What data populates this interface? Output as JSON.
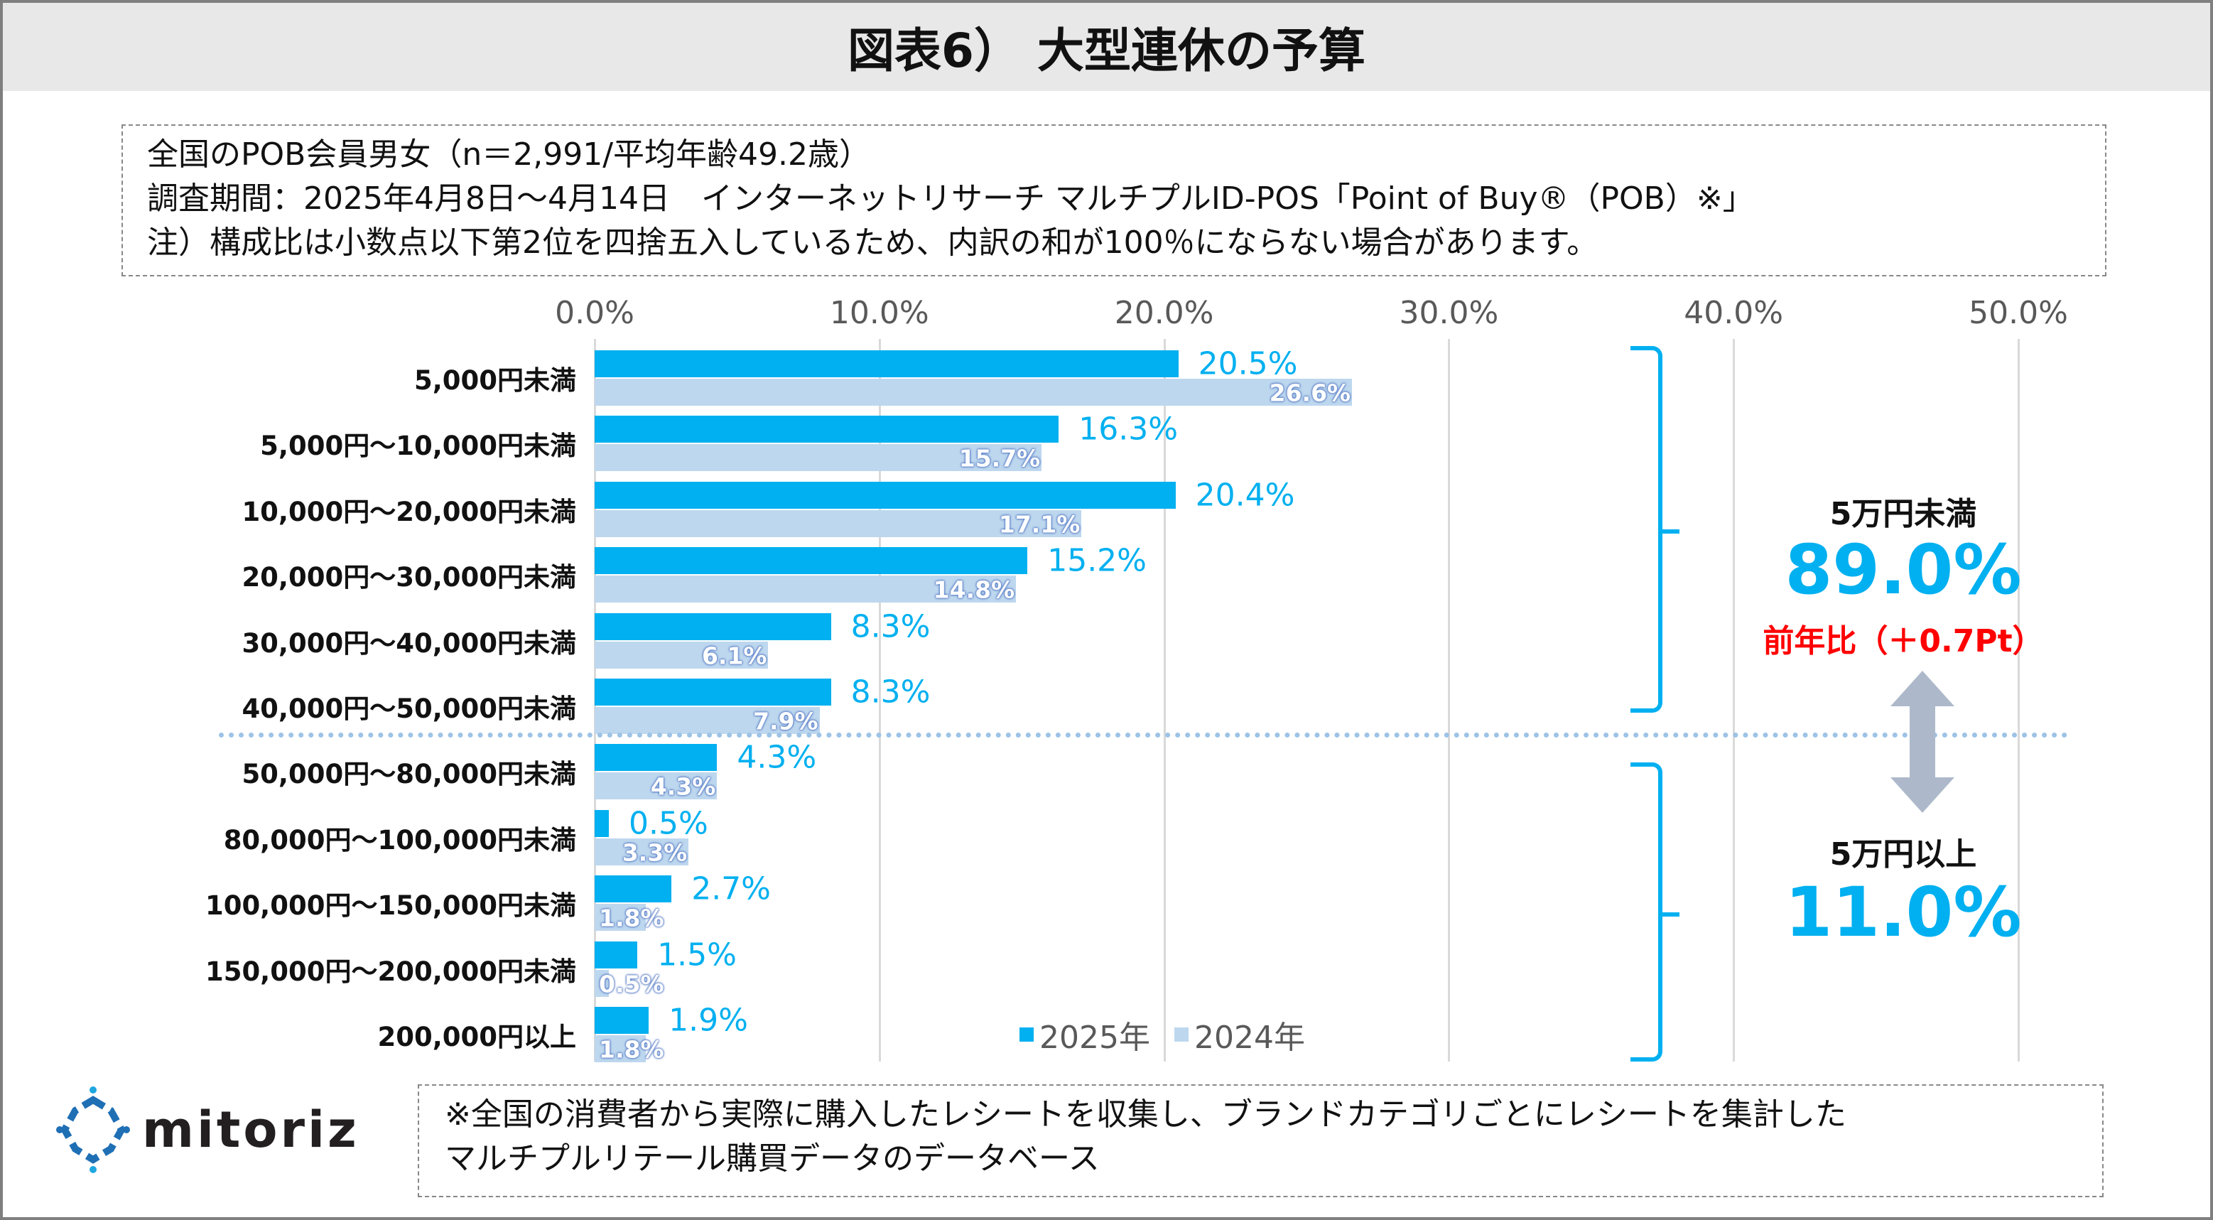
{
  "title": "図表6） 大型連休の予算",
  "info": [
    "全国のPOB会員男女（n＝2,991/平均年齢49.2歳）",
    "調査期間：2025年4月8日～4月14日　インターネットリサーチ マルチプルID-POS「Point of Buy®（POB）※」",
    "注）構成比は小数点以下第2位を四捨五入しているため、内訳の和が100％にならない場合があります。"
  ],
  "chart_data": {
    "type": "bar",
    "orientation": "horizontal",
    "title": "",
    "xlabel": "",
    "ylabel": "",
    "xlim": [
      0,
      50
    ],
    "tick_labels": [
      "0.0%",
      "10.0%",
      "20.0%",
      "30.0%",
      "40.0%",
      "50.0%"
    ],
    "categories": [
      "5,000円未満",
      "5,000円～10,000円未満",
      "10,000円～20,000円未満",
      "20,000円～30,000円未満",
      "30,000円～40,000円未満",
      "40,000円～50,000円未満",
      "50,000円～80,000円未満",
      "80,000円～100,000円未満",
      "100,000円～150,000円未満",
      "150,000円～200,000円未満",
      "200,000円以上"
    ],
    "series": [
      {
        "name": "2025年",
        "color": "#00b0f0",
        "values": [
          20.5,
          16.3,
          20.4,
          15.2,
          8.3,
          8.3,
          4.3,
          0.5,
          2.7,
          1.5,
          1.9
        ]
      },
      {
        "name": "2024年",
        "color": "#bdd7ee",
        "values": [
          26.6,
          15.7,
          17.1,
          14.8,
          6.1,
          7.9,
          4.3,
          3.3,
          1.8,
          0.5,
          1.8
        ]
      }
    ],
    "legend_position": "bottom-center",
    "grid": true
  },
  "summary": {
    "under_label": "5万円未満",
    "under_value": "89.0%",
    "yoy": "前年比（＋0.7Pt）",
    "over_label": "5万円以上",
    "over_value": "11.0%"
  },
  "logo": "mitoriz",
  "note": [
    "※全国の消費者から実際に購入したレシートを収集し、ブランドカテゴリごとにレシートを集計した",
    "マルチプルリテール購買データのデータベース"
  ]
}
